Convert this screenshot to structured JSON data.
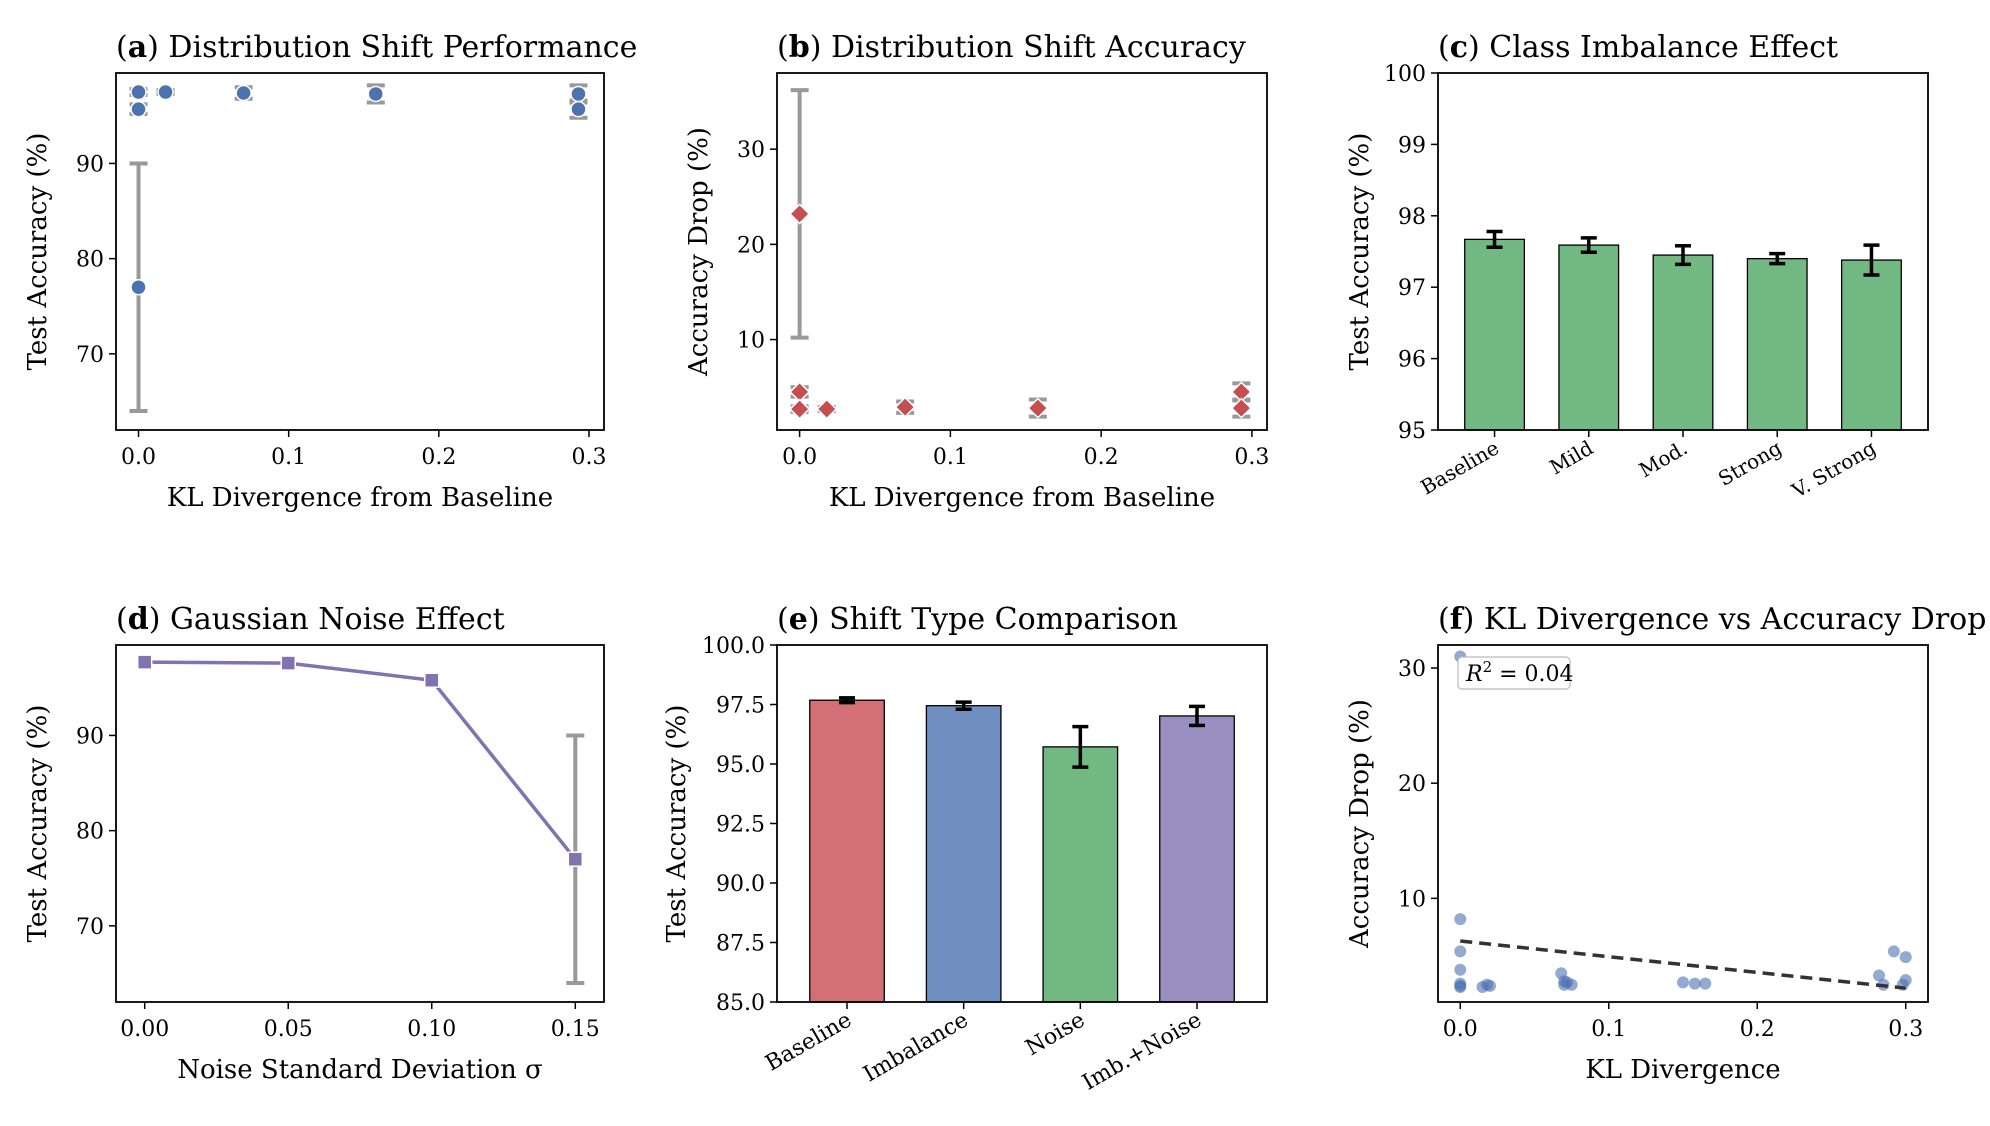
{
  "chart_data": [
    {
      "id": "a",
      "type": "scatter",
      "letter": "a",
      "title": "Distribution Shift Performance",
      "xlabel": "KL Divergence from Baseline",
      "ylabel": "Test Accuracy (%)",
      "xlim": [
        -0.015,
        0.31
      ],
      "ylim": [
        62,
        99.5
      ],
      "xticks": [
        0.0,
        0.1,
        0.2,
        0.3
      ],
      "xtick_labels": [
        "0.0",
        "0.1",
        "0.2",
        "0.3"
      ],
      "yticks": [
        70,
        80,
        90
      ],
      "ytick_labels": [
        "70",
        "80",
        "90"
      ],
      "marker": "circle",
      "color": "#4C72B0",
      "points": [
        {
          "x": 0.0,
          "y": 97.5,
          "err": 0.3
        },
        {
          "x": 0.0,
          "y": 95.7,
          "err": 0.5
        },
        {
          "x": 0.0,
          "y": 77.0,
          "err": 13.0
        },
        {
          "x": 0.018,
          "y": 97.5,
          "err": 0.2
        },
        {
          "x": 0.07,
          "y": 97.4,
          "err": 0.6
        },
        {
          "x": 0.158,
          "y": 97.3,
          "err": 0.9
        },
        {
          "x": 0.293,
          "y": 97.3,
          "err": 0.9
        },
        {
          "x": 0.293,
          "y": 95.7,
          "err": 0.9
        }
      ]
    },
    {
      "id": "b",
      "type": "scatter",
      "letter": "b",
      "title": "Distribution Shift Accuracy",
      "xlabel": "KL Divergence from Baseline",
      "ylabel": "Accuracy Drop (%)",
      "xlim": [
        -0.015,
        0.31
      ],
      "ylim": [
        0.5,
        38
      ],
      "xticks": [
        0.0,
        0.1,
        0.2,
        0.3
      ],
      "xtick_labels": [
        "0.0",
        "0.1",
        "0.2",
        "0.3"
      ],
      "yticks": [
        10,
        20,
        30
      ],
      "ytick_labels": [
        "10",
        "20",
        "30"
      ],
      "marker": "diamond",
      "color": "#C44E52",
      "points": [
        {
          "x": 0.0,
          "y": 23.2,
          "err": 13.0
        },
        {
          "x": 0.0,
          "y": 4.5,
          "err": 0.5
        },
        {
          "x": 0.0,
          "y": 2.7,
          "err": 0.3
        },
        {
          "x": 0.018,
          "y": 2.7,
          "err": 0.2
        },
        {
          "x": 0.07,
          "y": 2.9,
          "err": 0.6
        },
        {
          "x": 0.158,
          "y": 2.8,
          "err": 0.9
        },
        {
          "x": 0.293,
          "y": 4.5,
          "err": 0.9
        },
        {
          "x": 0.293,
          "y": 2.8,
          "err": 0.9
        }
      ]
    },
    {
      "id": "c",
      "type": "bar",
      "letter": "c",
      "title": "Class Imbalance Effect",
      "xlabel": "",
      "ylabel": "Test Accuracy (%)",
      "ylim": [
        95,
        100
      ],
      "yticks": [
        95,
        96,
        97,
        98,
        99,
        100
      ],
      "ytick_labels": [
        "95",
        "96",
        "97",
        "98",
        "99",
        "100"
      ],
      "categories": [
        "Baseline",
        "Mild",
        "Mod.",
        "Strong",
        "V. Strong"
      ],
      "values": [
        97.67,
        97.59,
        97.45,
        97.4,
        97.38
      ],
      "errors": [
        0.11,
        0.1,
        0.13,
        0.07,
        0.21
      ],
      "colors": [
        "#71B882",
        "#71B882",
        "#71B882",
        "#71B882",
        "#71B882"
      ]
    },
    {
      "id": "d",
      "type": "line",
      "letter": "d",
      "title": "Gaussian Noise Effect",
      "xlabel": "Noise Standard Deviation σ",
      "ylabel": "Test Accuracy (%)",
      "xlim": [
        -0.01,
        0.16
      ],
      "ylim": [
        62,
        99.5
      ],
      "xticks": [
        0.0,
        0.05,
        0.1,
        0.15
      ],
      "xtick_labels": [
        "0.00",
        "0.05",
        "0.10",
        "0.15"
      ],
      "yticks": [
        70,
        80,
        90
      ],
      "ytick_labels": [
        "70",
        "80",
        "90"
      ],
      "marker": "square",
      "color": "#8172B2",
      "x": [
        0.0,
        0.05,
        0.1,
        0.15
      ],
      "y": [
        97.7,
        97.6,
        95.8,
        77.0
      ],
      "errors": [
        0.1,
        0.2,
        0.8,
        13.0
      ]
    },
    {
      "id": "e",
      "type": "bar",
      "letter": "e",
      "title": "Shift Type Comparison",
      "xlabel": "",
      "ylabel": "Test Accuracy (%)",
      "ylim": [
        85,
        100
      ],
      "yticks": [
        85,
        87.5,
        90,
        92.5,
        95,
        97.5,
        100
      ],
      "ytick_labels": [
        "85.0",
        "87.5",
        "90.0",
        "92.5",
        "95.0",
        "97.5",
        "100.0"
      ],
      "categories": [
        "Baseline",
        "Imbalance",
        "Noise",
        "Imb.+Noise"
      ],
      "values": [
        97.68,
        97.45,
        95.72,
        97.02
      ],
      "errors": [
        0.1,
        0.15,
        0.85,
        0.4
      ],
      "colors": [
        "#D27075",
        "#708FC1",
        "#71B882",
        "#9A8FC1"
      ]
    },
    {
      "id": "f",
      "type": "scatter",
      "letter": "f",
      "title": "KL Divergence vs Accuracy Drop",
      "xlabel": "KL Divergence",
      "ylabel": "Accuracy Drop (%)",
      "xlim": [
        -0.015,
        0.315
      ],
      "ylim": [
        1,
        32
      ],
      "xticks": [
        0.0,
        0.1,
        0.2,
        0.3
      ],
      "xtick_labels": [
        "0.0",
        "0.1",
        "0.2",
        "0.3"
      ],
      "yticks": [
        10,
        20,
        30
      ],
      "ytick_labels": [
        "10",
        "20",
        "30"
      ],
      "color": "#4C72B0",
      "points_x": [
        0.0,
        0.0,
        0.0,
        0.0,
        0.0,
        0.0,
        0.0,
        0.015,
        0.018,
        0.02,
        0.068,
        0.07,
        0.072,
        0.075,
        0.07,
        0.15,
        0.158,
        0.165,
        0.282,
        0.285,
        0.292,
        0.298,
        0.3,
        0.3
      ],
      "points_y": [
        31.0,
        8.2,
        5.4,
        3.8,
        2.6,
        2.4,
        2.3,
        2.3,
        2.5,
        2.4,
        3.5,
        2.5,
        2.7,
        2.5,
        2.8,
        2.7,
        2.6,
        2.6,
        3.3,
        2.5,
        5.4,
        2.5,
        2.9,
        4.9
      ],
      "fit_line": {
        "x": [
          0.0,
          0.3
        ],
        "y": [
          6.3,
          2.2
        ]
      },
      "annotation": "R² = 0.04",
      "annotation_base": "R",
      "annotation_sup": "2",
      "annotation_rest": " = 0.04"
    }
  ]
}
